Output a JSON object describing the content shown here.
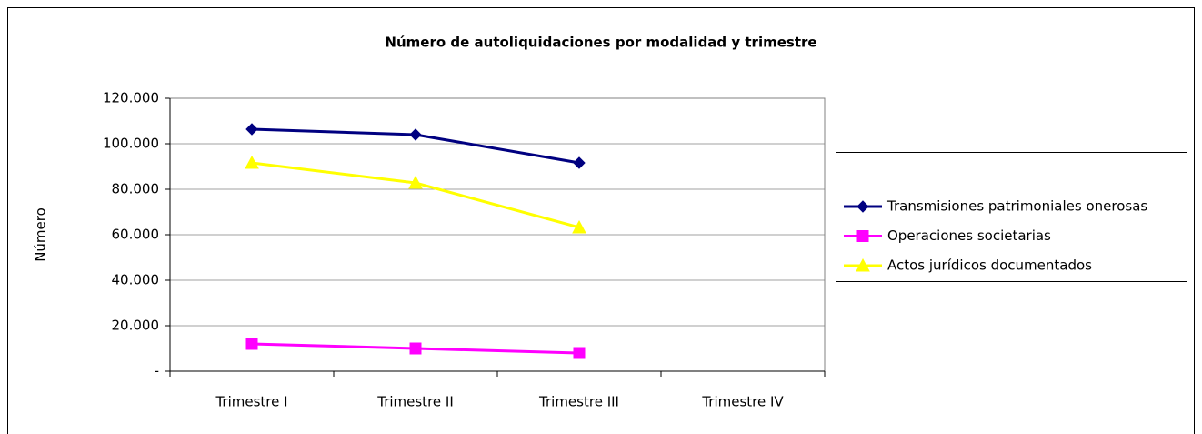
{
  "chart_data": {
    "type": "line",
    "title": "Número de autoliquidaciones por modalidad y trimestre",
    "y_label": "Número",
    "categories": [
      "Trimestre I",
      "Trimestre II",
      "Trimestre III",
      "Trimestre IV"
    ],
    "series": [
      {
        "name": "Transmisiones patrimoniales onerosas",
        "color": "#000080",
        "marker": "diamond",
        "values": [
          106400,
          104000,
          91600,
          null
        ]
      },
      {
        "name": "Operaciones societarias",
        "color": "#ff00ff",
        "marker": "square",
        "values": [
          12000,
          10000,
          8000,
          null
        ]
      },
      {
        "name": "Actos jurídicos documentados",
        "color": "#ffff00",
        "marker": "triangle",
        "values": [
          91600,
          82800,
          63200,
          null
        ]
      }
    ],
    "ylim": [
      0,
      120000
    ],
    "yticks": [
      {
        "value": 0,
        "label": "-"
      },
      {
        "value": 20000,
        "label": "20.000"
      },
      {
        "value": 40000,
        "label": "40.000"
      },
      {
        "value": 60000,
        "label": "60.000"
      },
      {
        "value": 80000,
        "label": "80.000"
      },
      {
        "value": 100000,
        "label": "100.000"
      },
      {
        "value": 120000,
        "label": "120.000"
      }
    ],
    "grid": true,
    "legend": "right"
  }
}
